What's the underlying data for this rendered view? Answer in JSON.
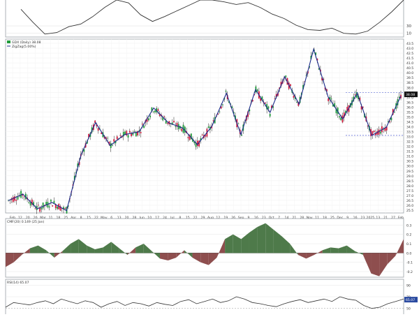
{
  "chart_data": [
    {
      "type": "line",
      "panel": "top-oscillator",
      "right_ticks": [
        "30",
        "10"
      ],
      "ylim": [
        0,
        100
      ],
      "values": [
        75,
        40,
        8,
        12,
        28,
        35,
        55,
        80,
        100,
        92,
        60,
        42,
        55,
        70,
        85,
        100,
        100,
        95,
        88,
        93,
        80,
        62,
        50,
        32,
        20,
        18,
        24,
        10,
        8,
        16,
        40,
        68,
        100
      ]
    },
    {
      "type": "candlestick",
      "panel": "price",
      "legend": [
        "GDX (Daily) 38.08",
        "ZigZag(5.00%)"
      ],
      "last_value_label": "38.08",
      "y_ticks": [
        "43.5",
        "43.0",
        "42.5",
        "41.5",
        "41.0",
        "40.5",
        "40.0",
        "39.5",
        "38.5",
        "38.0",
        "37.5",
        "37.0",
        "36.5",
        "36.0",
        "35.5",
        "35.0",
        "34.5",
        "34.0",
        "33.5",
        "33.0",
        "32.5",
        "32.0",
        "31.5",
        "31.0",
        "30.5",
        "30.0",
        "29.5",
        "29.0",
        "28.5",
        "28.0",
        "27.5",
        "27.0",
        "26.5",
        "26.0",
        "25.5"
      ],
      "x_ticks": [
        "Feb",
        "12",
        "20",
        "26",
        "Mar",
        "11",
        "18",
        "25",
        "Apr",
        "8",
        "15",
        "22",
        "May",
        "6",
        "13",
        "20",
        "28",
        "Jun",
        "10",
        "17",
        "24",
        "Jul",
        "8",
        "15",
        "22",
        "29",
        "Aug",
        "12",
        "19",
        "26",
        "Sep",
        "9",
        "16",
        "23",
        "Oct",
        "7",
        "14",
        "21",
        "28",
        "Nov",
        "11",
        "18",
        "25",
        "Dec",
        "9",
        "16",
        "23",
        "2025",
        "13",
        "21",
        "27",
        "Feb"
      ],
      "ylim": [
        25.3,
        43.8
      ],
      "zigzag": [
        26.5,
        27.2,
        25.6,
        26.3,
        25.4,
        31.5,
        35.0,
        32.5,
        33.7,
        34.0,
        36.6,
        35.0,
        34.4,
        32.6,
        34.6,
        38.2,
        33.7,
        38.6,
        36.1,
        40.0,
        37.0,
        43.0,
        37.8,
        35.4,
        38.2,
        33.6,
        34.5,
        37.9
      ],
      "reference_lines": [
        38.3,
        33.6
      ]
    },
    {
      "type": "area",
      "panel": "cmf",
      "legend": "CMF(20) 0.149 (25 Jan)",
      "y_ticks": [
        "0.3",
        "0.2",
        "0.1",
        "0.0",
        "-0.1",
        "-0.2"
      ],
      "ylim": [
        -0.26,
        0.37
      ],
      "values": [
        -0.15,
        -0.1,
        -0.02,
        0.05,
        0.08,
        0.03,
        -0.05,
        0.02,
        0.1,
        0.15,
        0.08,
        0.04,
        0.06,
        0.12,
        0.05,
        -0.02,
        0.06,
        0.1,
        0.02,
        -0.06,
        -0.08,
        -0.05,
        0.03,
        -0.05,
        -0.1,
        -0.13,
        -0.05,
        0.15,
        0.2,
        0.15,
        0.22,
        0.28,
        0.32,
        0.25,
        0.18,
        0.1,
        -0.02,
        -0.06,
        -0.02,
        0.03,
        0.06,
        0.05,
        0.08,
        0.02,
        -0.02,
        -0.22,
        -0.25,
        -0.12,
        -0.03,
        0.15
      ]
    },
    {
      "type": "line",
      "panel": "rsi",
      "legend": "RSI(14) 65.07",
      "y_ticks": [
        "90",
        "70",
        "50"
      ],
      "last_value_label": "65.07",
      "ylim": [
        40,
        100
      ],
      "values": [
        52,
        60,
        58,
        56,
        60,
        63,
        58,
        66,
        62,
        58,
        63,
        60,
        52,
        58,
        62,
        55,
        60,
        58,
        54,
        60,
        57,
        55,
        62,
        65,
        58,
        62,
        66,
        60,
        63,
        70,
        66,
        60,
        58,
        55,
        53,
        58,
        62,
        65,
        60,
        63,
        66,
        62,
        70,
        66,
        64,
        55,
        50,
        52,
        58,
        62,
        66
      ]
    }
  ]
}
